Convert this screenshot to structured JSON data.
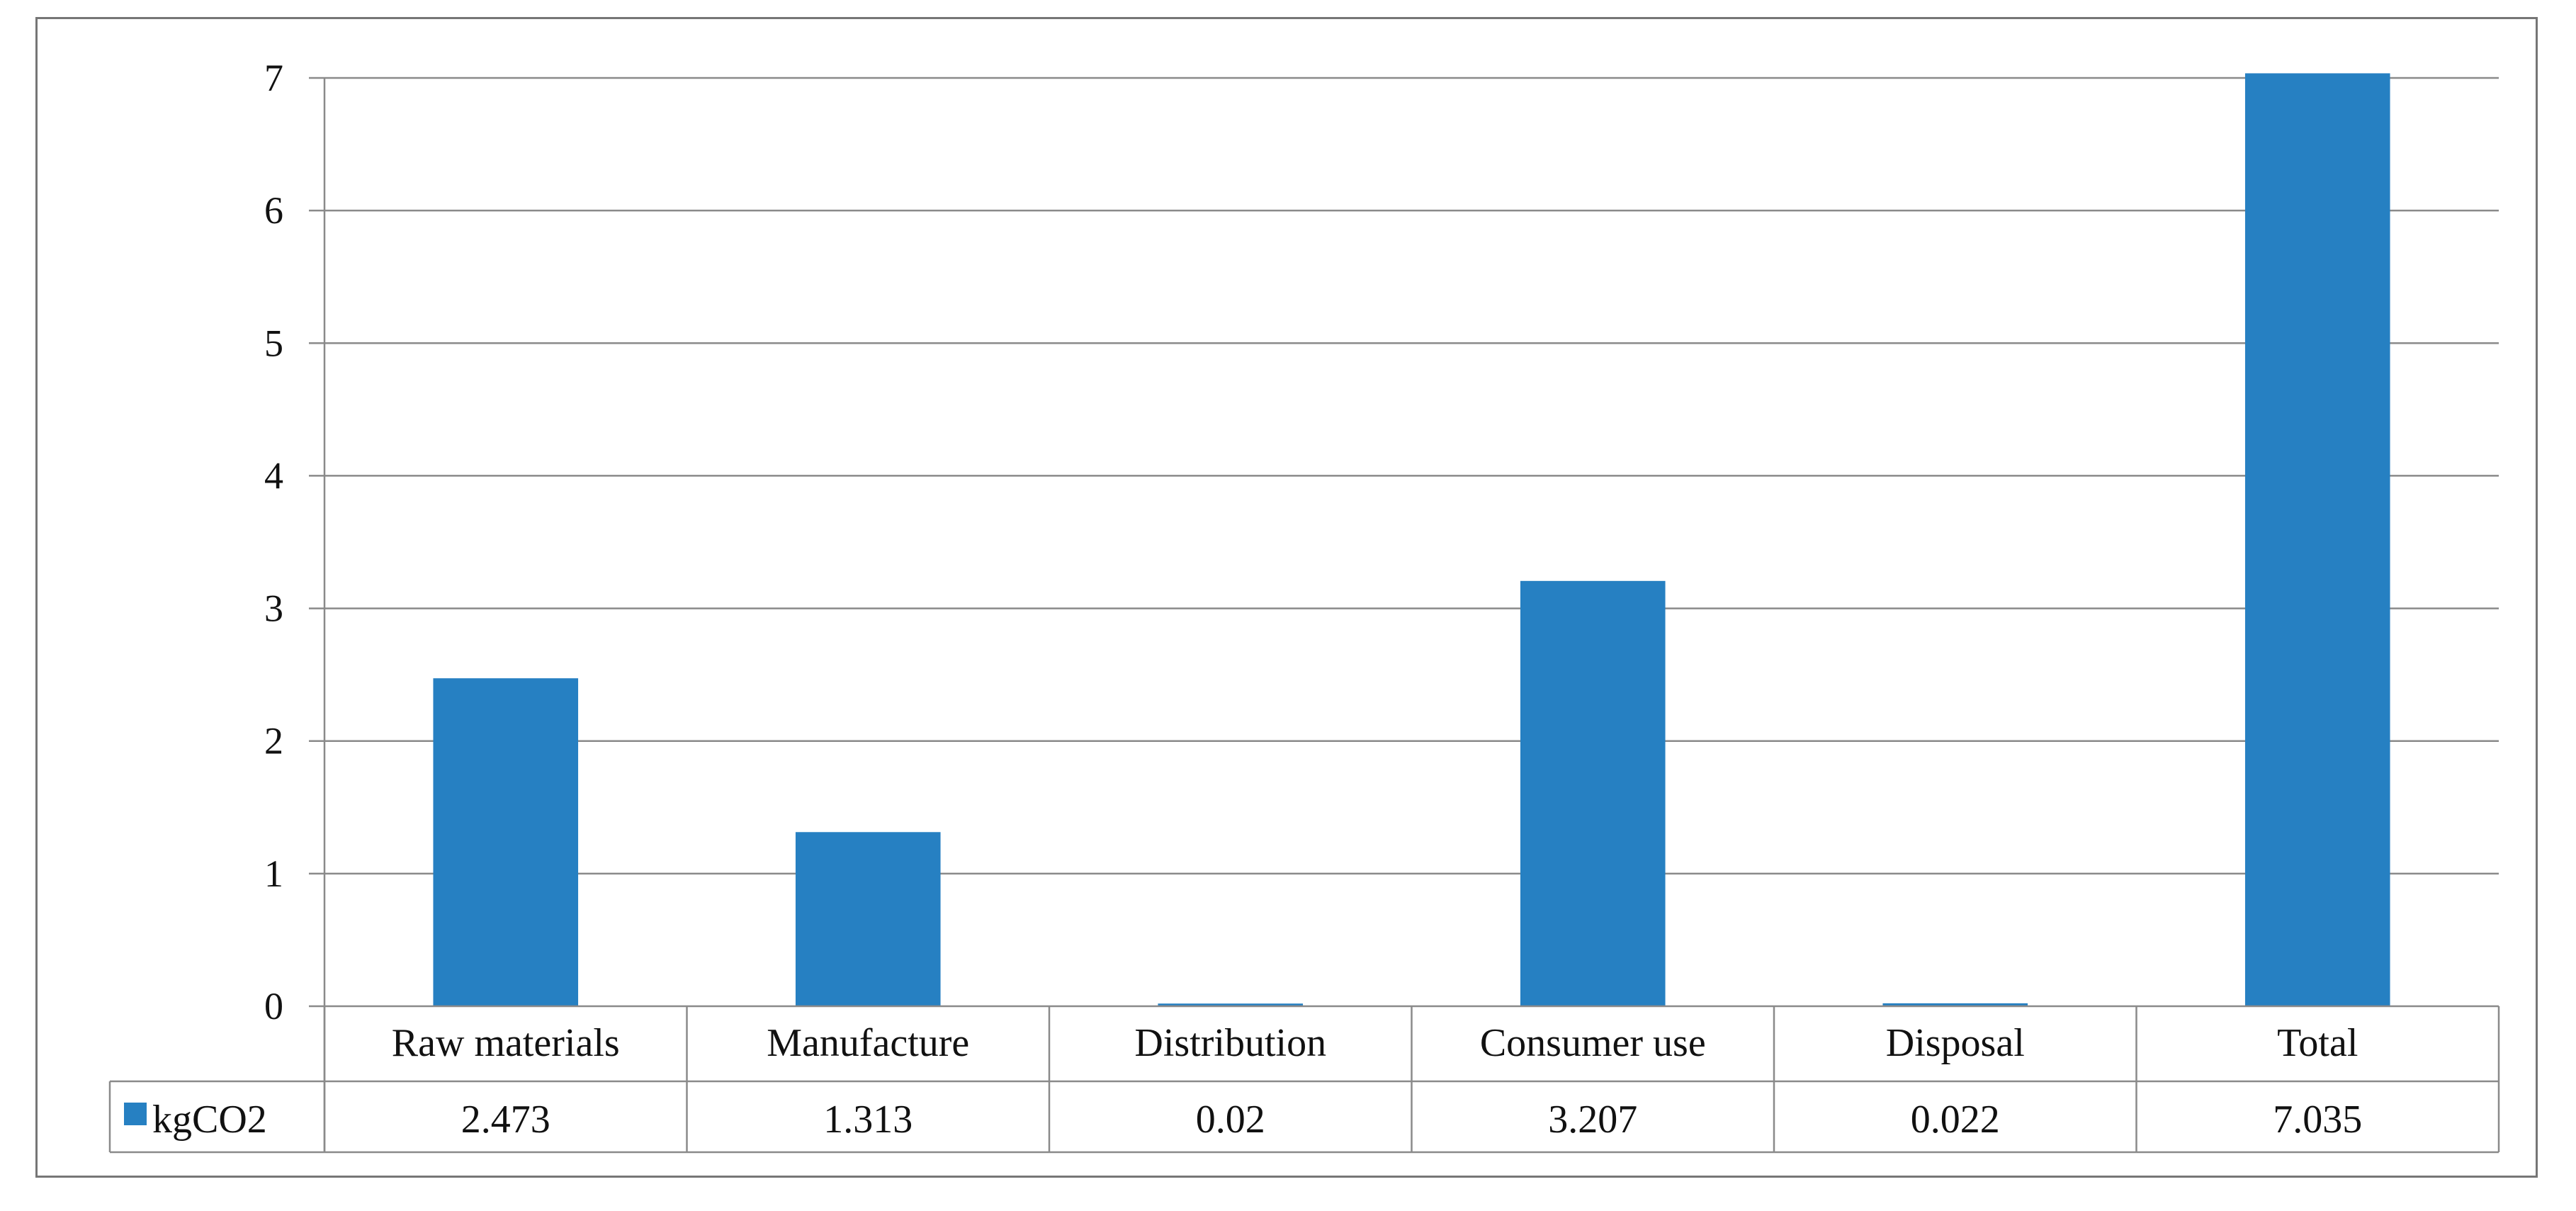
{
  "chart_data": {
    "type": "bar",
    "categories": [
      "Raw materials",
      "Manufacture",
      "Distribution",
      "Consumer use",
      "Disposal",
      "Total"
    ],
    "series": [
      {
        "name": "kgCO2",
        "values": [
          2.473,
          1.313,
          0.02,
          3.207,
          0.022,
          7.035
        ],
        "value_labels": [
          "2.473",
          "1.313",
          "0.02",
          "3.207",
          "0.022",
          "7.035"
        ]
      }
    ],
    "title": "",
    "xlabel": "",
    "ylabel": "",
    "ylim": [
      0,
      7
    ],
    "yticks": [
      "0",
      "1",
      "2",
      "3",
      "4",
      "5",
      "6",
      "7"
    ],
    "grid": true,
    "legend": "data-table-left",
    "data_table": true,
    "colors": {
      "bar": "#2680c2",
      "grid": "#8a8a8a",
      "axis": "#8a8a8a",
      "frame": "#767676"
    }
  }
}
